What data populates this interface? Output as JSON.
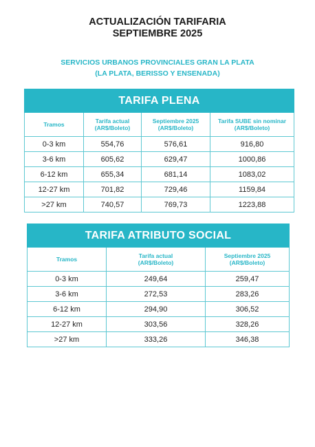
{
  "title": {
    "line1": "ACTUALIZACIÓN TARIFARIA",
    "line2": "SEPTIEMBRE 2025"
  },
  "subtitle": {
    "line1": "SERVICIOS URBANOS PROVINCIALES GRAN LA PLATA",
    "line2": "(LA PLATA, BERISSO Y ENSENADA)"
  },
  "colors": {
    "accent": "#27b6c7",
    "text": "#1a1a1a"
  },
  "tarifa_plena": {
    "heading": "TARIFA PLENA",
    "columns": [
      {
        "l1": "Tramos",
        "l2": ""
      },
      {
        "l1": "Tarifa actual",
        "l2": "(AR$/Boleto)"
      },
      {
        "l1": "Septiembre 2025",
        "l2": "(AR$/Boleto)"
      },
      {
        "l1": "Tarifa SUBE sin nominar",
        "l2": "(AR$/Boleto)"
      }
    ],
    "rows": [
      [
        "0-3 km",
        "554,76",
        "576,61",
        "916,80"
      ],
      [
        "3-6 km",
        "605,62",
        "629,47",
        "1000,86"
      ],
      [
        "6-12 km",
        "655,34",
        "681,14",
        "1083,02"
      ],
      [
        "12-27 km",
        "701,82",
        "729,46",
        "1159,84"
      ],
      [
        ">27 km",
        "740,57",
        "769,73",
        "1223,88"
      ]
    ]
  },
  "tarifa_social": {
    "heading": "TARIFA ATRIBUTO SOCIAL",
    "columns": [
      {
        "l1": "Tramos",
        "l2": ""
      },
      {
        "l1": "Tarifa actual",
        "l2": "(AR$/Boleto)"
      },
      {
        "l1": "Septiembre 2025",
        "l2": "(AR$/Boleto)"
      }
    ],
    "rows": [
      [
        "0-3 km",
        "249,64",
        "259,47"
      ],
      [
        "3-6 km",
        "272,53",
        "283,26"
      ],
      [
        "6-12 km",
        "294,90",
        "306,52"
      ],
      [
        "12-27 km",
        "303,56",
        "328,26"
      ],
      [
        ">27 km",
        "333,26",
        "346,38"
      ]
    ]
  }
}
